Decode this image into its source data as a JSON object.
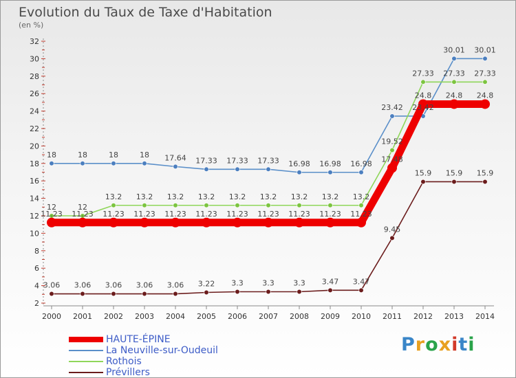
{
  "chart_data": {
    "type": "line",
    "title": "Evolution du Taux de Taxe d'Habitation",
    "ylabel": "(en %)",
    "xlabel": "",
    "ylim": [
      2,
      32
    ],
    "yticks": [
      2,
      4,
      6,
      8,
      10,
      12,
      14,
      16,
      18,
      20,
      22,
      24,
      26,
      28,
      30,
      32
    ],
    "categories": [
      "2000",
      "2001",
      "2002",
      "2003",
      "2004",
      "2005",
      "2006",
      "2007",
      "2008",
      "2009",
      "2010",
      "2011",
      "2012",
      "2013",
      "2014"
    ],
    "series": [
      {
        "name": "Prévillers",
        "color": "#6b1c1c",
        "marker": "#6b1c1c",
        "values": [
          3.06,
          3.06,
          3.06,
          3.06,
          3.06,
          3.22,
          3.3,
          3.3,
          3.3,
          3.47,
          3.47,
          9.45,
          15.9,
          15.9,
          15.9
        ],
        "labels": [
          "3.06",
          "3.06",
          "3.06",
          "3.06",
          "3.06",
          "3.22",
          "3.3",
          "3.3",
          "3.3",
          "3.47",
          "3.47",
          "9.45",
          "15.9",
          "15.9",
          "15.9"
        ]
      },
      {
        "name": "La Neuville-sur-Oudeuil",
        "color": "#5a8fc9",
        "marker": "#4c7fbf",
        "values": [
          18,
          18,
          18,
          18,
          17.64,
          17.33,
          17.33,
          17.33,
          16.98,
          16.98,
          16.98,
          23.42,
          23.42,
          30.01,
          30.01
        ],
        "labels": [
          "18",
          "18",
          "18",
          "18",
          "17.64",
          "17.33",
          "17.33",
          "17.33",
          "16.98",
          "16.98",
          "16.98",
          "23.42",
          "23.42",
          "30.01",
          "30.01"
        ]
      },
      {
        "name": "Rothois",
        "color": "#8fd65a",
        "marker": "#7cc440",
        "values": [
          12,
          12,
          13.2,
          13.2,
          13.2,
          13.2,
          13.2,
          13.2,
          13.2,
          13.2,
          13.2,
          19.52,
          27.33,
          27.33,
          27.33
        ],
        "labels": [
          "12",
          "12",
          "13.2",
          "13.2",
          "13.2",
          "13.2",
          "13.2",
          "13.2",
          "13.2",
          "13.2",
          "13.2",
          "19.52",
          "27.33",
          "27.33",
          "27.33"
        ]
      },
      {
        "name": "HAUTE-ÉPINE",
        "color": "#ee0000",
        "marker": "#ee0000",
        "values": [
          11.23,
          11.23,
          11.23,
          11.23,
          11.23,
          11.23,
          11.23,
          11.23,
          11.23,
          11.23,
          11.23,
          17.48,
          24.8,
          24.8,
          24.8
        ],
        "labels": [
          "11.23",
          "11.23",
          "11.23",
          "11.23",
          "11.23",
          "11.23",
          "11.23",
          "11.23",
          "11.23",
          "11.23",
          "11.23",
          "17.48",
          "24.8",
          "24.8",
          "24.8"
        ]
      }
    ],
    "legend": [
      {
        "name": "HAUTE-ÉPINE",
        "color": "#ee0000"
      },
      {
        "name": "La Neuville-sur-Oudeuil",
        "color": "#5a8fc9"
      },
      {
        "name": "Rothois",
        "color": "#8fd65a"
      },
      {
        "name": "Prévillers",
        "color": "#6b1c1c"
      }
    ],
    "legend_position": "bottom-left",
    "grid": false
  },
  "branding": {
    "logo_letters": [
      "P",
      "r",
      "o",
      "x",
      "i",
      "t",
      "i"
    ],
    "logo_colors": [
      "#3a86c8",
      "#e8a020",
      "#2aa34a",
      "#e8a020",
      "#d23a2a",
      "#3a86c8",
      "#2aa34a"
    ]
  }
}
